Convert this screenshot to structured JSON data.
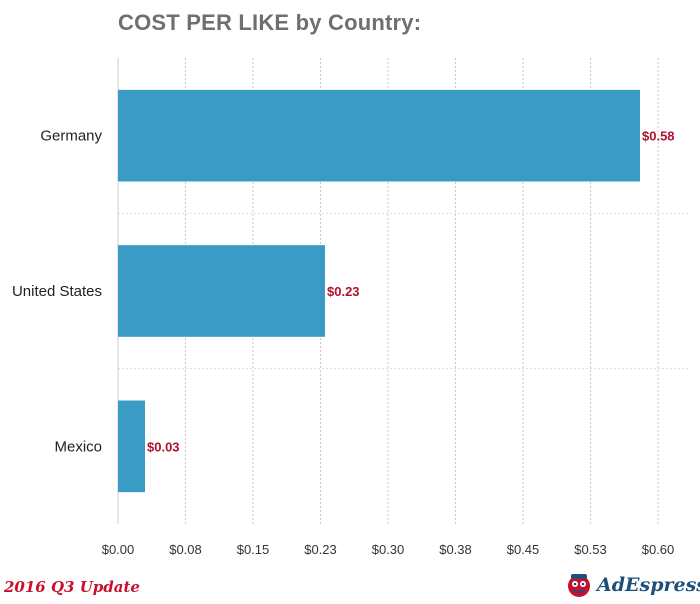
{
  "chart_data": {
    "type": "bar",
    "orientation": "horizontal",
    "title": "COST PER LIKE by Country:",
    "categories": [
      "Germany",
      "United States",
      "Mexico"
    ],
    "values": [
      0.58,
      0.23,
      0.03
    ],
    "data_labels": [
      "$0.58",
      "$0.23",
      "$0.03"
    ],
    "x_ticks": [
      "$0.00",
      "$0.08",
      "$0.15",
      "$0.23",
      "$0.30",
      "$0.38",
      "$0.45",
      "$0.53",
      "$0.60"
    ],
    "xlim": [
      0,
      0.6
    ],
    "grid": "vertical dashed",
    "colors": {
      "bar": "#3a9bc4",
      "label": "#b0112e",
      "grid": "#c9c9c9"
    }
  },
  "footer": {
    "update_label": "2016 Q3 Update",
    "brand": "AdEspresso",
    "brand_icon": "mascot-icon"
  }
}
